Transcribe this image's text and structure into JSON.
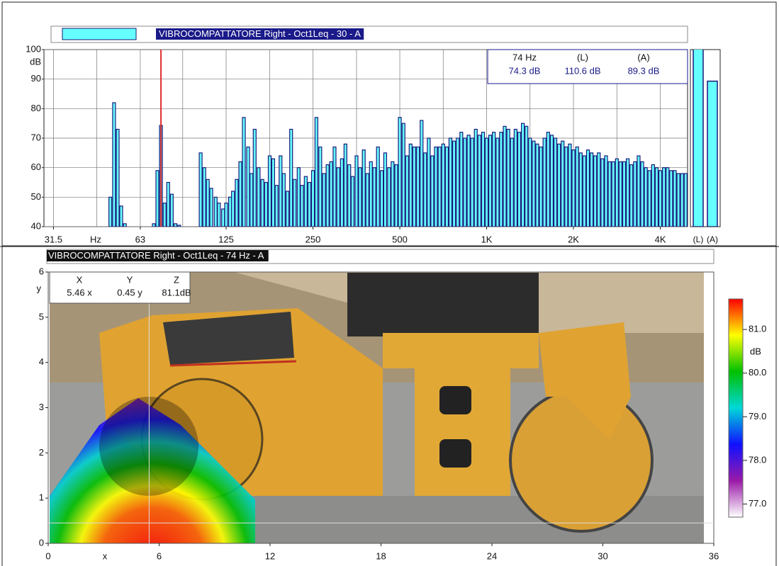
{
  "chart_data": [
    {
      "type": "bar",
      "title": "VIBROCOMPATTATORE Right - Oct1Leq - 30 - A",
      "x_unit": "Hz",
      "y_unit": "dB",
      "x": [
        49.6,
        51.1,
        52.6,
        54.1,
        55.7,
        70.2,
        72.2,
        74.3,
        76.5,
        78.7,
        81.0,
        83.4,
        85.9,
        102,
        105,
        108,
        111,
        115,
        118,
        122,
        125,
        129,
        132,
        136,
        140,
        144,
        149,
        153,
        157,
        162,
        167,
        172,
        177,
        182,
        187,
        193,
        198,
        204,
        210,
        216,
        223,
        229,
        236,
        243,
        250,
        257,
        265,
        273,
        281,
        289,
        297,
        306,
        315,
        324,
        334,
        343,
        354,
        364,
        375,
        386,
        397,
        408,
        420,
        433,
        445,
        459,
        472,
        486,
        500,
        515,
        530,
        545,
        561,
        578,
        595,
        612,
        630,
        648,
        667,
        687,
        707,
        728,
        749,
        771,
        794,
        817,
        841,
        866,
        891,
        917,
        944,
        972,
        1000,
        1029,
        1059,
        1091,
        1122,
        1155,
        1189,
        1224,
        1260,
        1297,
        1335,
        1374,
        1414,
        1456,
        1498,
        1542,
        1587,
        1634,
        1682,
        1731,
        1782,
        1834,
        1888,
        1943,
        2000,
        2059,
        2119,
        2181,
        2245,
        2311,
        2378,
        2448,
        2520,
        2594,
        2670,
        2748,
        2828,
        2911,
        2997,
        3084,
        3175,
        3268,
        3364,
        3462,
        3564,
        3668,
        3776,
        3886,
        4000,
        4117,
        4238,
        4362,
        4490,
        4622,
        4757,
        4897
      ],
      "values": [
        50,
        82,
        73,
        47,
        41,
        41,
        59,
        74.3,
        48,
        55,
        51,
        41,
        40.5,
        65,
        60,
        56,
        53,
        50,
        48,
        46,
        48,
        50,
        52,
        56,
        62,
        77,
        67,
        58,
        73,
        60,
        56,
        55,
        64,
        63,
        54,
        64,
        58,
        52,
        73,
        56,
        60,
        54,
        57,
        55,
        59,
        77,
        67,
        58,
        61,
        62,
        67,
        60,
        63,
        68,
        61,
        57,
        64,
        60,
        66,
        58,
        62,
        60,
        67,
        59,
        65,
        60,
        62,
        61,
        77,
        75,
        64,
        68,
        67,
        67,
        76,
        65,
        70,
        64,
        67,
        67,
        68,
        67,
        70,
        69,
        70,
        72,
        70,
        71,
        70,
        73,
        71,
        72,
        70,
        71,
        72,
        70,
        72,
        74,
        73,
        70,
        73,
        72,
        75,
        74,
        70,
        69,
        68,
        67,
        70,
        72,
        71,
        70,
        68,
        69,
        67,
        68,
        66,
        67,
        65,
        64,
        66,
        65,
        64,
        65,
        63,
        64,
        62,
        62,
        63,
        62,
        62,
        63,
        61,
        62,
        64,
        62,
        60,
        59,
        61,
        60,
        59,
        60,
        60,
        59,
        59,
        58,
        58,
        58
      ],
      "color": "#66ffff",
      "edge_color": "#1a1a7a",
      "xlog": true,
      "xlim": [
        29.2,
        4972
      ],
      "xticks": [
        31.5,
        63,
        125,
        250,
        500,
        {
          "value": 1000,
          "label": "1K"
        },
        {
          "value": 2000,
          "label": "2K"
        },
        {
          "value": 4000,
          "label": "4K"
        }
      ],
      "xgrid_minor": [
        44.5,
        88.4,
        177,
        354,
        707,
        1414,
        2828
      ],
      "ylim": [
        40,
        100
      ],
      "yticks": [
        40,
        50,
        60,
        70,
        80,
        90,
        100
      ],
      "grid": true,
      "cursor": {
        "x": 74.3,
        "color": "#e03030"
      },
      "readout": {
        "labels": [
          "74 Hz",
          "(L)",
          "(A)"
        ],
        "values": [
          "74.3 dB",
          "110.6 dB",
          "89.3 dB"
        ]
      },
      "totals": {
        "categories": [
          "(L)",
          "(A)"
        ],
        "values": [
          110.6,
          89.3
        ]
      }
    },
    {
      "type": "image",
      "title": "VIBROCOMPATTATORE Right - Oct1Leq - 74 Hz - A",
      "x_label": "x",
      "y_label": "y",
      "xlim": [
        0,
        36
      ],
      "xticks": [
        0,
        6,
        12,
        18,
        24,
        30,
        36
      ],
      "ylim": [
        0,
        6
      ],
      "yticks": [
        0,
        1,
        2,
        3,
        4,
        5,
        6
      ],
      "cursor": {
        "x": 5.46,
        "y": 0.45
      },
      "readout": {
        "labels": [
          "X",
          "Y",
          "Z"
        ],
        "values": [
          "5.46 x",
          "0.45 y",
          "81.1dB"
        ]
      },
      "colorbar": {
        "unit": "dB",
        "lim": [
          76.7,
          81.7
        ],
        "ticks": [
          {
            "value": 77,
            "label": "77.0"
          },
          {
            "value": 78,
            "label": "78.0"
          },
          {
            "value": 79,
            "label": "79.0"
          },
          {
            "value": 80,
            "label": "80.0"
          },
          {
            "value": 81,
            "label": "81.0"
          }
        ],
        "colors": [
          "#ffffff",
          "#9a1aa8",
          "#1010ff",
          "#00d8d8",
          "#00c000",
          "#ffff00",
          "#ff0000"
        ]
      }
    }
  ]
}
